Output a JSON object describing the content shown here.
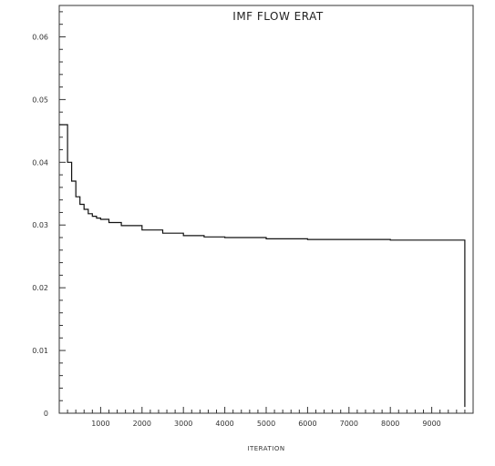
{
  "chart_data": {
    "type": "line",
    "title": "IMF   FLOW   ERAT",
    "xlabel": "ITERATION",
    "ylabel": "",
    "xlim": [
      0,
      10000
    ],
    "ylim": [
      0,
      0.065
    ],
    "x_ticks": [
      1000,
      2000,
      3000,
      4000,
      5000,
      6000,
      7000,
      8000,
      9000
    ],
    "x_tick_labels": [
      "1000",
      "2000",
      "3000",
      "4000",
      "5000",
      "6000",
      "7000",
      "8000",
      "9000"
    ],
    "y_ticks": [
      0,
      0.01,
      0.02,
      0.03,
      0.04,
      0.05,
      0.06
    ],
    "y_tick_labels": [
      "0",
      "0.01",
      "0.02",
      "0.03",
      "0.04",
      "0.05",
      "0.06"
    ],
    "grid": false,
    "series": [
      {
        "x": [
          0,
          100,
          200,
          300,
          400,
          500,
          600,
          700,
          800,
          900,
          1000,
          1200,
          1500,
          2000,
          2500,
          3000,
          3500,
          4000,
          5000,
          6000,
          7000,
          8000,
          9000,
          9800,
          9800
        ],
        "values": [
          0.046,
          0.046,
          0.04,
          0.037,
          0.0345,
          0.0333,
          0.0325,
          0.0318,
          0.0314,
          0.0311,
          0.0309,
          0.0304,
          0.0299,
          0.0292,
          0.0287,
          0.0283,
          0.0281,
          0.028,
          0.0278,
          0.0277,
          0.0277,
          0.0276,
          0.0276,
          0.0276,
          0.001
        ]
      }
    ]
  }
}
